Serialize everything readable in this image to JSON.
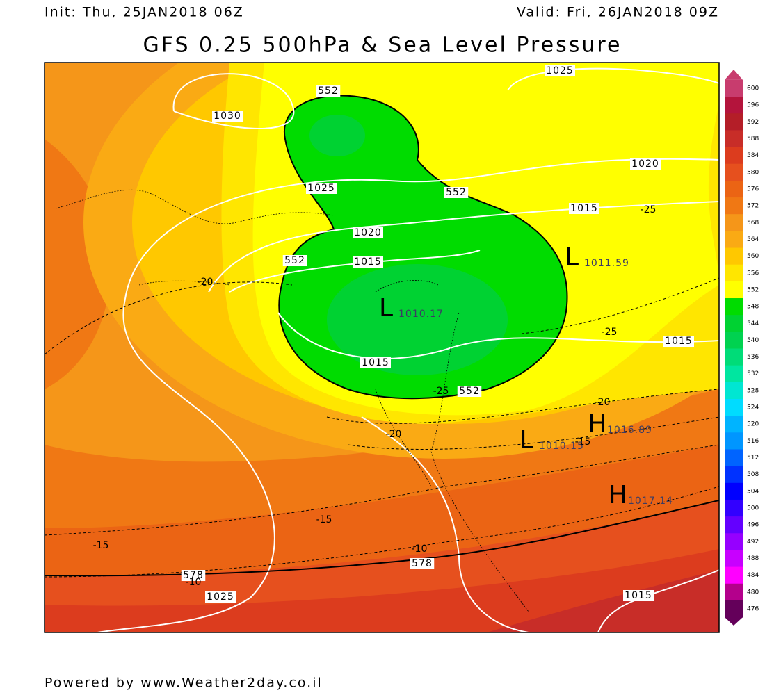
{
  "header": {
    "init": "Init: Thu, 25JAN2018 06Z",
    "valid": "Valid: Fri, 26JAN2018 09Z",
    "title": "GFS 0.25 500hPa & Sea Level Pressure"
  },
  "colorbar": [
    {
      "value": 600,
      "color": "#c83c6e"
    },
    {
      "value": 596,
      "color": "#b4143c"
    },
    {
      "value": 592,
      "color": "#b41e28"
    },
    {
      "value": 588,
      "color": "#c82d28"
    },
    {
      "value": 584,
      "color": "#dc3c1e"
    },
    {
      "value": 580,
      "color": "#e6501e"
    },
    {
      "value": 576,
      "color": "#eb6414"
    },
    {
      "value": 572,
      "color": "#f07814"
    },
    {
      "value": 568,
      "color": "#f59619"
    },
    {
      "value": 564,
      "color": "#faaa14"
    },
    {
      "value": 560,
      "color": "#ffc800"
    },
    {
      "value": 556,
      "color": "#ffe600"
    },
    {
      "value": 552,
      "color": "#ffff00"
    },
    {
      "value": 548,
      "color": "#00dc00"
    },
    {
      "value": 544,
      "color": "#00d232"
    },
    {
      "value": 540,
      "color": "#00d250"
    },
    {
      "value": 536,
      "color": "#00dc78"
    },
    {
      "value": 532,
      "color": "#00e6a0"
    },
    {
      "value": 528,
      "color": "#00e6d2"
    },
    {
      "value": 524,
      "color": "#00dcff"
    },
    {
      "value": 520,
      "color": "#00b4ff"
    },
    {
      "value": 516,
      "color": "#0096ff"
    },
    {
      "value": 512,
      "color": "#0064ff"
    },
    {
      "value": 508,
      "color": "#0032ff"
    },
    {
      "value": 504,
      "color": "#0000ff"
    },
    {
      "value": 500,
      "color": "#3200ff"
    },
    {
      "value": 496,
      "color": "#6400ff"
    },
    {
      "value": 492,
      "color": "#9600ff"
    },
    {
      "value": 488,
      "color": "#c800ff"
    },
    {
      "value": 484,
      "color": "#ff00ff"
    },
    {
      "value": 480,
      "color": "#b4008c"
    },
    {
      "value": 476,
      "color": "#64005a"
    }
  ],
  "isobar_labels": [
    1025,
    1030,
    1025,
    1020,
    1015,
    1015,
    1020,
    1015,
    1015,
    1025,
    1015
  ],
  "height_labels": [
    552,
    552,
    552,
    552,
    578,
    578
  ],
  "temp_labels": [
    -25,
    -20,
    -25,
    -25,
    -20,
    -20,
    -15,
    -15,
    -15,
    -10,
    -10
  ],
  "centers": [
    {
      "symbol": "L",
      "value": 1011.59
    },
    {
      "symbol": "L",
      "value": 1010.17
    },
    {
      "symbol": "H",
      "value": 1016.89
    },
    {
      "symbol": "L",
      "value": 1010.15
    },
    {
      "symbol": "H",
      "value": 1017.14
    }
  ],
  "footer": "Powered by www.Weather2day.co.il"
}
